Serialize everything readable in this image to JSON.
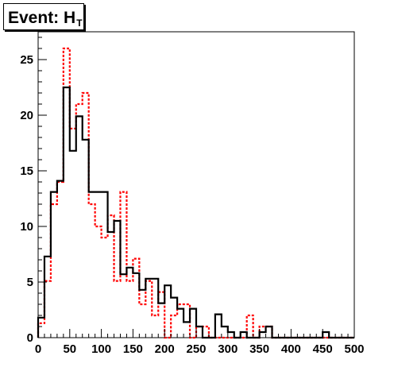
{
  "chart_data": {
    "type": "histogram",
    "title": {
      "prefix": "Event: ",
      "symbol": "H",
      "subscript": "T"
    },
    "xlim": [
      0,
      500
    ],
    "ylim": [
      0,
      27.5
    ],
    "x_ticks": [
      0,
      50,
      100,
      150,
      200,
      250,
      300,
      350,
      400,
      450,
      500
    ],
    "y_ticks": [
      0,
      5,
      10,
      15,
      20,
      25
    ],
    "bin_width": 10,
    "series": [
      {
        "style": "solid",
        "color": "#000000",
        "values": [
          1.8,
          7.3,
          13.1,
          14.1,
          22.5,
          16.8,
          19.9,
          17.8,
          13.1,
          13.1,
          13.1,
          9.5,
          10.5,
          5.7,
          6.3,
          5.8,
          4.3,
          5.3,
          5.3,
          3.1,
          4.7,
          3.6,
          2.6,
          1.4,
          2.6,
          1.0,
          0.0,
          0.0,
          2.1,
          1.0,
          0.5,
          0.0,
          0.5,
          0.0,
          0.0,
          0.5,
          1.0,
          0.0,
          0.0,
          0.0,
          0.0,
          0.0,
          0.0,
          0.0,
          0.0,
          0.5,
          0.0,
          0.0,
          0.0,
          0.0
        ]
      },
      {
        "style": "dashed",
        "color": "#ff0000",
        "values": [
          1.3,
          5.1,
          12.0,
          14.0,
          26.0,
          18.8,
          21.0,
          22.0,
          12.0,
          10.0,
          9.0,
          11.0,
          5.1,
          13.1,
          5.1,
          7.1,
          3.0,
          5.1,
          2.0,
          4.1,
          0.0,
          2.0,
          3.0,
          3.0,
          0.0,
          1.0,
          1.0,
          0.0,
          0.0,
          0.0,
          0.0,
          0.0,
          0.0,
          2.0,
          0.0,
          1.0,
          1.0,
          0.0,
          0.0,
          0.0,
          0.0,
          0.0,
          0.0,
          0.0,
          0.0,
          0.0,
          0.0,
          0.0,
          0.0,
          0.0
        ]
      }
    ]
  }
}
